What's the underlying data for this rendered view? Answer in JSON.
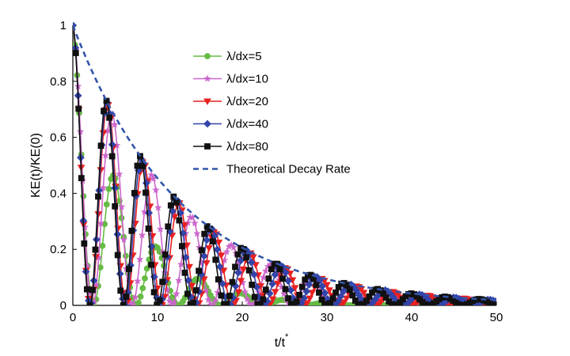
{
  "chart_data": {
    "type": "line",
    "title": "",
    "xlabel": "t/t",
    "xlabel_superscript": "*",
    "ylabel": "KE(t)/KE(0)",
    "xlim": [
      0,
      50
    ],
    "ylim": [
      0,
      1
    ],
    "xticks": [
      0,
      10,
      20,
      30,
      40,
      50
    ],
    "xtick_labels": [
      "0",
      "10",
      "20",
      "30",
      "40",
      "50"
    ],
    "yticks": [
      0,
      0.2,
      0.4,
      0.6,
      0.8,
      1
    ],
    "ytick_labels": [
      "0",
      "0.2",
      "0.4",
      "0.6",
      "0.8",
      "1"
    ],
    "grid": false,
    "legend_position": "upper-middle",
    "series": [
      {
        "name": "λ/dx=5",
        "color": "#66bb44",
        "marker": "circle",
        "dash": "solid",
        "decay": 0.158,
        "period": 5.0,
        "phase": 1.45
      },
      {
        "name": "λ/dx=10",
        "color": "#cc66cc",
        "marker": "star",
        "dash": "solid",
        "decay": 0.082,
        "period": 4.7,
        "phase": 1.4
      },
      {
        "name": "λ/dx=20",
        "color": "#e82020",
        "marker": "triangle",
        "dash": "solid",
        "decay": 0.08,
        "period": 4.2,
        "phase": 1.32
      },
      {
        "name": "λ/dx=40",
        "color": "#3344aa",
        "marker": "diamond",
        "dash": "solid",
        "decay": 0.079,
        "period": 4.1,
        "phase": 1.25
      },
      {
        "name": "λ/dx=80",
        "color": "#111111",
        "marker": "square",
        "dash": "solid",
        "decay": 0.079,
        "period": 4.0,
        "phase": 1.2
      },
      {
        "name": "Theoretical Decay Rate",
        "color": "#3355aa",
        "marker": "none",
        "dash": "dashed",
        "decay": 0.079
      }
    ]
  }
}
